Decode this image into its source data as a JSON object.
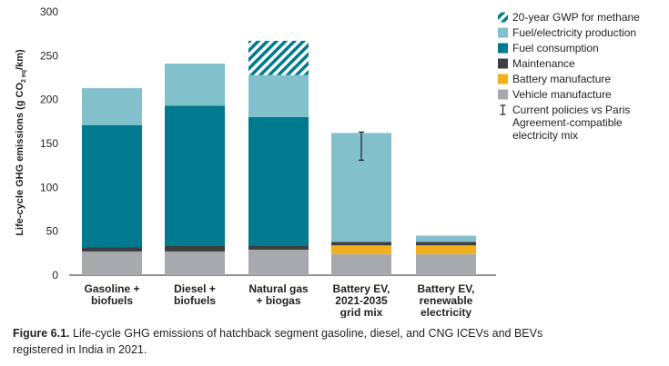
{
  "chart_data": {
    "type": "bar",
    "stacked": true,
    "ylabel": "Life-cycle GHG emissions (g CO",
    "ylabel_sub": "2 eq",
    "ylabel_tail": "/km)",
    "ylim": [
      0,
      300
    ],
    "yticks": [
      0,
      50,
      100,
      150,
      200,
      250,
      300
    ],
    "categories": [
      [
        "Gasoline +",
        "biofuels"
      ],
      [
        "Diesel +",
        "biofuels"
      ],
      [
        "Natural gas",
        "+ biogas"
      ],
      [
        "Battery EV,",
        "2021-2035",
        "grid mix"
      ],
      [
        "Battery EV,",
        "renewable",
        "electricity"
      ]
    ],
    "series": [
      {
        "name": "Vehicle manufacture",
        "color": "#a7a9ac",
        "values": [
          27,
          27,
          29,
          24,
          24
        ]
      },
      {
        "name": "Battery manufacture",
        "color": "#f2b01e",
        "values": [
          0,
          0,
          0,
          10,
          10
        ]
      },
      {
        "name": "Maintenance",
        "color": "#3d3f42",
        "values": [
          5,
          7,
          5,
          4,
          4
        ]
      },
      {
        "name": "Fuel consumption",
        "color": "#007a8e",
        "values": [
          139,
          159,
          146,
          0,
          0
        ]
      },
      {
        "name": "Fuel/electricity production",
        "color": "#82c0cc",
        "values": [
          42,
          48,
          48,
          124,
          7
        ]
      },
      {
        "name": "20-year GWP for methane",
        "color": "#007a8e",
        "pattern": "hatch",
        "values": [
          0,
          0,
          39,
          0,
          0
        ]
      }
    ],
    "error_bars": [
      {
        "category_index": 3,
        "low": 131,
        "high": 163
      }
    ],
    "legend": {
      "position": "right",
      "entries": [
        {
          "label": "20-year GWP for methane",
          "swatch": "hatch",
          "color": "#007a8e"
        },
        {
          "label": "Fuel/electricity production",
          "swatch": "box",
          "color": "#82c0cc"
        },
        {
          "label": "Fuel consumption",
          "swatch": "box",
          "color": "#007a8e"
        },
        {
          "label": "Maintenance",
          "swatch": "box",
          "color": "#3d3f42"
        },
        {
          "label": "Battery manufacture",
          "swatch": "box",
          "color": "#f2b01e"
        },
        {
          "label": "Vehicle manufacture",
          "swatch": "box",
          "color": "#a7a9ac"
        },
        {
          "label": [
            "Current policies vs Paris",
            "Agreement-compatible",
            "electricity mix"
          ],
          "swatch": "errorbar",
          "color": "#231f20"
        }
      ]
    },
    "grid": false
  },
  "caption": {
    "label": "Figure 6.1.",
    "text": " Life-cycle GHG emissions of hatchback segment gasoline, diesel, and CNG ICEVs and BEVs registered in India in 2021."
  }
}
